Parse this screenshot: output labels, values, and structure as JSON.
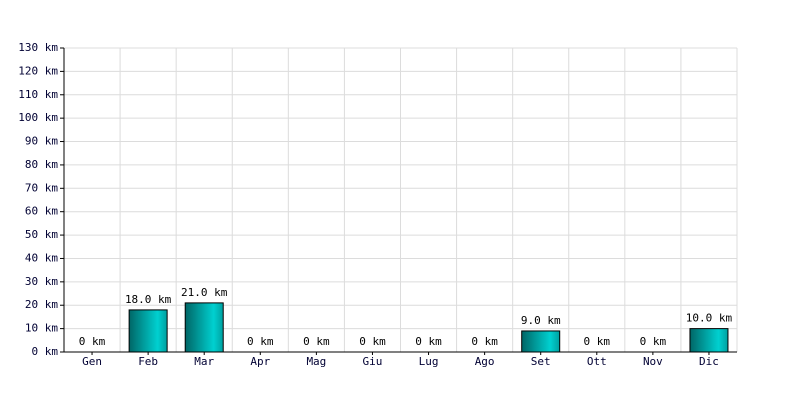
{
  "chart_data": {
    "type": "bar",
    "categories": [
      "Gen",
      "Feb",
      "Mar",
      "Apr",
      "Mag",
      "Giu",
      "Lug",
      "Ago",
      "Set",
      "Ott",
      "Nov",
      "Dic"
    ],
    "values": [
      0,
      18,
      21,
      0,
      0,
      0,
      0,
      0,
      9,
      0,
      0,
      10
    ],
    "value_labels": [
      "0 km",
      "18.0 km",
      "21.0 km",
      "0 km",
      "0 km",
      "0 km",
      "0 km",
      "0 km",
      "9.0 km",
      "0 km",
      "0 km",
      "10.0 km"
    ],
    "color": "#00d0d0",
    "ylim": [
      0,
      130
    ],
    "yticks": [
      {
        "value": 0,
        "label": "0 km"
      },
      {
        "value": 10,
        "label": "10 km"
      },
      {
        "value": 20,
        "label": "20 km"
      },
      {
        "value": 30,
        "label": "30 km"
      },
      {
        "value": 40,
        "label": "40 km"
      },
      {
        "value": 50,
        "label": "50 km"
      },
      {
        "value": 60,
        "label": "60 km"
      },
      {
        "value": 70,
        "label": "70 km"
      },
      {
        "value": 80,
        "label": "80 km"
      },
      {
        "value": 90,
        "label": "90 km"
      },
      {
        "value": 100,
        "label": "100 km"
      },
      {
        "value": 110,
        "label": "110 km"
      },
      {
        "value": 120,
        "label": "120 km"
      },
      {
        "value": 130,
        "label": "130 km"
      }
    ],
    "grid": true
  }
}
